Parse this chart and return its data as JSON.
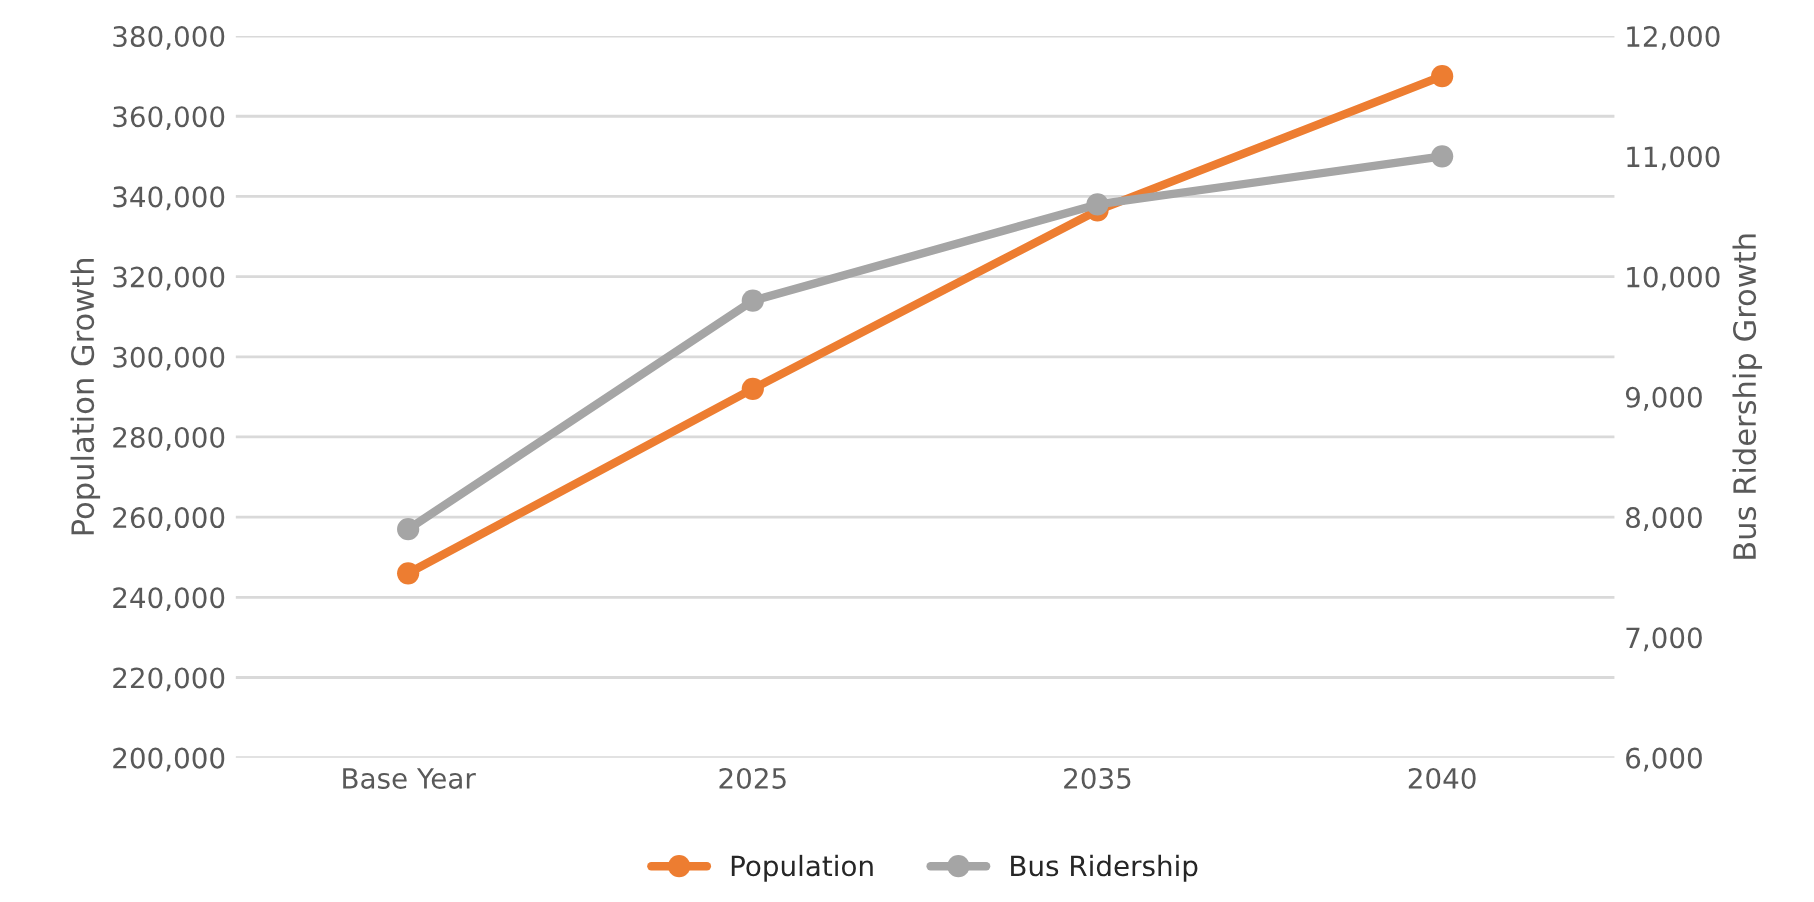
{
  "chart_data": {
    "type": "line",
    "categories": [
      "Base Year",
      "2025",
      "2035",
      "2040"
    ],
    "ylabel": "Population Growth",
    "y2label": "Bus Ridership Growth",
    "series": [
      {
        "name": "Population",
        "color": "#ed7d31",
        "values": [
          246000,
          292000,
          336500,
          370000
        ]
      },
      {
        "name": "Bus Ridership",
        "color": "#a5a5a5",
        "axis": "y2",
        "values": [
          7900,
          9800,
          10600,
          11000
        ]
      }
    ],
    "ylim": [
      200000,
      380000
    ],
    "yticks": [
      {
        "value": 200000,
        "label": "200,000"
      },
      {
        "value": 220000,
        "label": "220,000"
      },
      {
        "value": 240000,
        "label": "240,000"
      },
      {
        "value": 260000,
        "label": "260,000"
      },
      {
        "value": 280000,
        "label": "280,000"
      },
      {
        "value": 300000,
        "label": "300,000"
      },
      {
        "value": 320000,
        "label": "320,000"
      },
      {
        "value": 340000,
        "label": "340,000"
      },
      {
        "value": 360000,
        "label": "360,000"
      },
      {
        "value": 380000,
        "label": "380,000"
      }
    ],
    "y2lim": [
      6000,
      12000
    ],
    "y2ticks": [
      {
        "value": 6000,
        "label": "6,000"
      },
      {
        "value": 7000,
        "label": "7,000"
      },
      {
        "value": 8000,
        "label": "8,000"
      },
      {
        "value": 9000,
        "label": "9,000"
      },
      {
        "value": 10000,
        "label": "10,000"
      },
      {
        "value": 11000,
        "label": "11,000"
      },
      {
        "value": 12000,
        "label": "12,000"
      }
    ],
    "grid": "y",
    "legend": "bottom",
    "marker": "circle",
    "line_style": "solid"
  }
}
